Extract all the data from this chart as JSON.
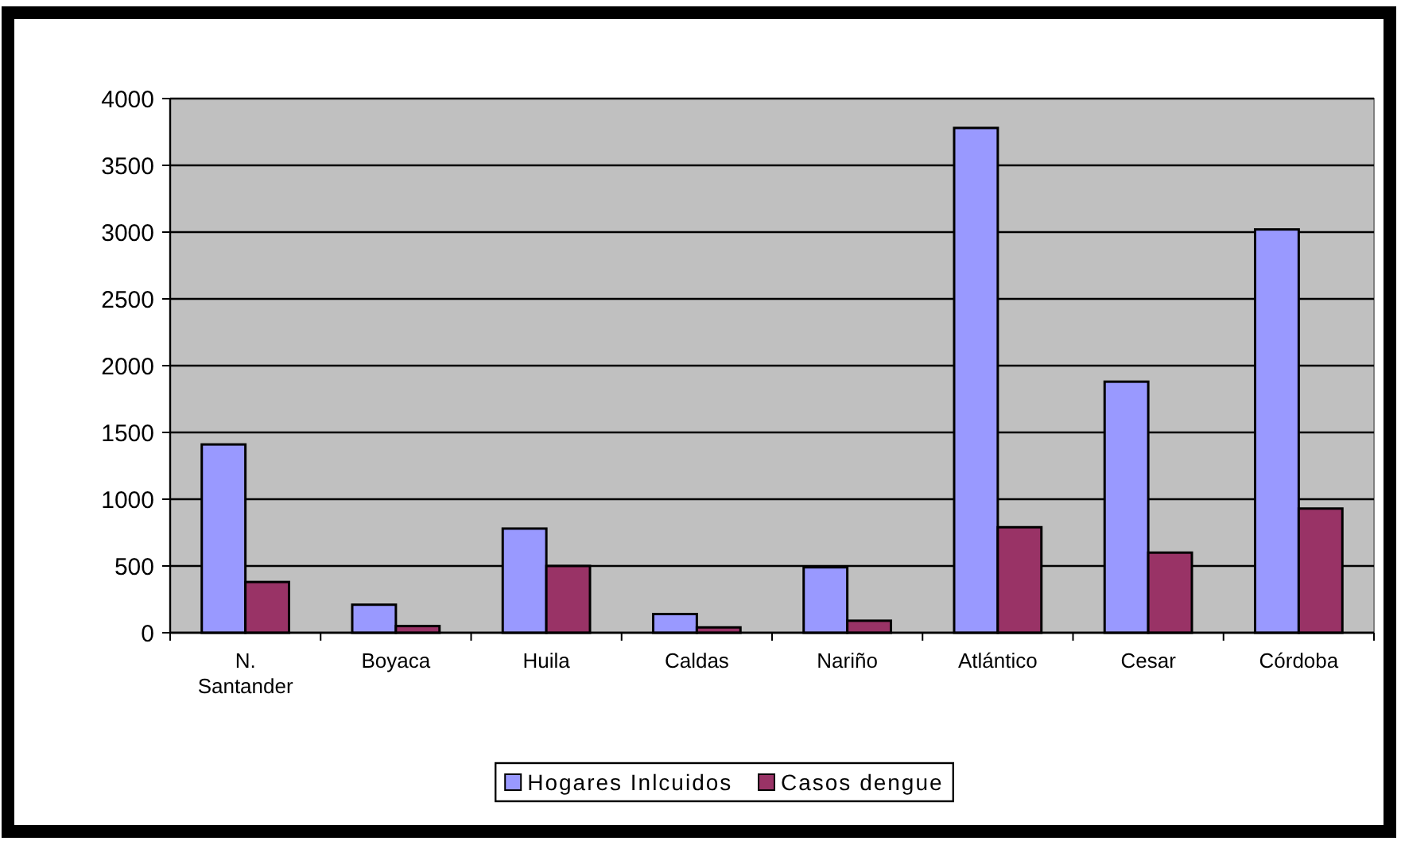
{
  "chart_data": {
    "type": "bar",
    "categories": [
      "N. Santander",
      "Boyaca",
      "Huila",
      "Caldas",
      "Nariño",
      "Atlántico",
      "Cesar",
      "Córdoba"
    ],
    "series": [
      {
        "name": "Hogares Inlcuidos",
        "color": "#9999ff",
        "values": [
          1410,
          210,
          780,
          140,
          490,
          3780,
          1880,
          3020
        ]
      },
      {
        "name": "Casos dengue",
        "color": "#993366",
        "values": [
          380,
          50,
          500,
          40,
          90,
          790,
          600,
          930
        ]
      }
    ],
    "ylim": [
      0,
      4000
    ],
    "yticks": [
      0,
      500,
      1000,
      1500,
      2000,
      2500,
      3000,
      3500,
      4000
    ],
    "grid": "y",
    "legend": "bottom"
  }
}
